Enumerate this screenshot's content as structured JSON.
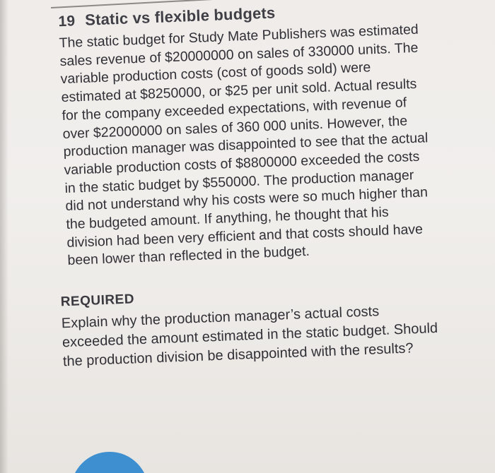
{
  "question": {
    "number": "19",
    "title": "Static vs flexible budgets",
    "body_lines": [
      "The static budget for Study Mate Publishers was estimated",
      "sales revenue of $20000000 on sales of 330000 units. The",
      "variable production costs (cost of goods sold) were",
      "estimated at $8250000, or $25 per unit sold. Actual results",
      "for the company exceeded expectations, with revenue of",
      "over $22000000 on sales of 360 000 units. However, the",
      "production manager was disappointed to see that the actual",
      "variable production costs of $8800000 exceeded the costs",
      "in the static budget by $550000. The production manager",
      "did not understand why his costs were so much higher than",
      "the budgeted amount. If anything, he thought that his",
      "division had been very efficient and that costs should have",
      "been lower than reflected in the budget."
    ]
  },
  "required": {
    "heading": "REQUIRED",
    "lines": [
      "Explain why the production manager’s actual costs",
      "exceeded the amount estimated in the static budget. Should",
      "the production division be disappointed with the results?"
    ]
  },
  "colors": {
    "paper": "#efecea",
    "text": "#303036",
    "tab": "#3d8fd0"
  }
}
